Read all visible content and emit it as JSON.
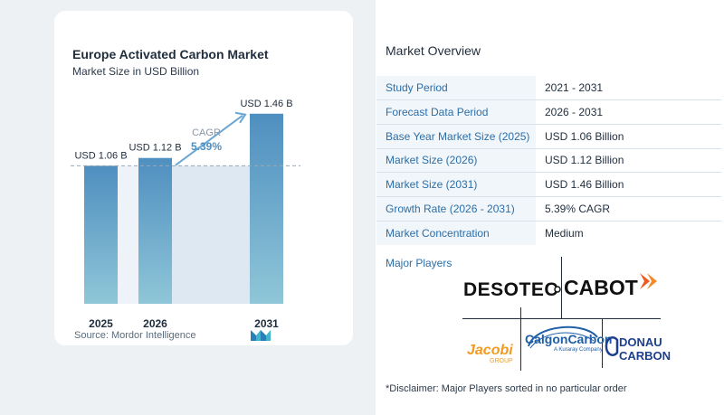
{
  "chart_card": {
    "title": "Europe Activated Carbon Market",
    "subtitle": "Market Size in USD Billion",
    "source": "Source:  Mordor Intelligence",
    "logo_icon": "mordor-intelligence-logo-icon"
  },
  "chart_data": {
    "type": "bar",
    "title": "Europe Activated Carbon Market",
    "subtitle": "Market Size in USD Billion",
    "categories": [
      "2025",
      "2026",
      "2031"
    ],
    "values": [
      1.06,
      1.12,
      1.46
    ],
    "data_labels": [
      "USD 1.06 B",
      "USD 1.12 B",
      "USD 1.46 B"
    ],
    "cagr_label": "CAGR",
    "cagr_value": "5.39%",
    "ylim": [
      0,
      1.5
    ],
    "bar_color": "#4f8fc0",
    "bar_color_light": "#8fc6d8",
    "band_color": "#dde8f3",
    "grid": false
  },
  "overview": {
    "title": "Market Overview",
    "rows": [
      {
        "label": "Study Period",
        "value": "2021 - 2031"
      },
      {
        "label": "Forecast Data Period",
        "value": "2026 - 2031"
      },
      {
        "label": "Base Year Market Size (2025)",
        "value": "USD 1.06 Billion"
      },
      {
        "label": "Market Size (2026)",
        "value": "USD 1.12 Billion"
      },
      {
        "label": "Market Size (2031)",
        "value": "USD 1.46 Billion"
      },
      {
        "label": "Growth Rate (2026 - 2031)",
        "value": "5.39% CAGR"
      },
      {
        "label": "Market Concentration",
        "value": "Medium"
      }
    ],
    "major_players_label": "Major Players",
    "players": {
      "desotec": "DESOTEC",
      "cabot": "CABOT",
      "jacobi": "Jacobi",
      "jacobi_sub": "GROUP",
      "calgon": "CalgonCarbon",
      "calgon_sub": "A Kuraray Company",
      "donau_1": "DONAU",
      "donau_2": "CARBON"
    },
    "disclaimer": "*Disclaimer: Major Players sorted in no particular order"
  },
  "colors": {
    "accent_blue": "#2b6ea8",
    "cabot_orange": "#f05a22",
    "jacobi_orange": "#f39a1e",
    "calgon_blue": "#1f5fa8",
    "donau_blue": "#1d3f8f"
  }
}
